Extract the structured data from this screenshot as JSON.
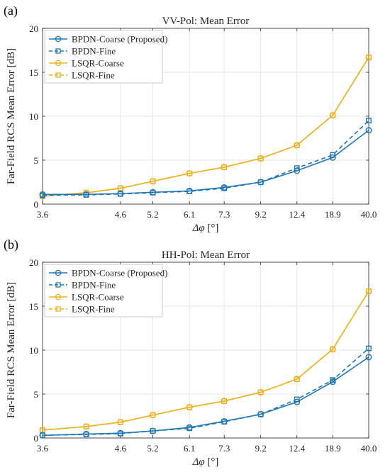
{
  "colors": {
    "bpdn": "#1f77b4",
    "lsqr": "#edb120",
    "grid": "#e6e6e6",
    "axis": "#262626"
  },
  "chart_data": [
    {
      "panel_label": "(a)",
      "type": "line",
      "title": "VV-Pol: Mean Error",
      "xlabel_symbol": "Δφ",
      "xlabel_unit": "[°]",
      "ylabel": "Far-Field RCS Mean Error [dB]",
      "ylim": [
        0,
        20
      ],
      "yticks": [
        0,
        5,
        10,
        15,
        20
      ],
      "xticks": [
        3.6,
        4.6,
        5.2,
        6.1,
        7.3,
        9.2,
        12.4,
        18.9,
        40.0
      ],
      "xtick_labels": [
        "3.6",
        "4.6",
        "5.2",
        "6.1",
        "7.3",
        "9.2",
        "12.4",
        "18.9",
        "40.0"
      ],
      "x_scale": "reciprocal",
      "grid": true,
      "legend_position": "top-left",
      "x": [
        3.6,
        4.1,
        4.6,
        5.2,
        6.1,
        7.3,
        9.2,
        12.4,
        18.9,
        40.0
      ],
      "series": [
        {
          "name": "BPDN-Coarse (Proposed)",
          "color": "#1f77b4",
          "dash": "solid",
          "marker": "circle",
          "values": [
            1.1,
            1.1,
            1.2,
            1.35,
            1.5,
            1.9,
            2.5,
            3.8,
            5.3,
            8.4
          ]
        },
        {
          "name": "BPDN-Fine",
          "color": "#1f77b4",
          "dash": "dashed",
          "marker": "square",
          "values": [
            1.0,
            1.05,
            1.15,
            1.3,
            1.45,
            1.8,
            2.5,
            4.1,
            5.6,
            9.5
          ]
        },
        {
          "name": "LSQR-Coarse",
          "color": "#edb120",
          "dash": "solid",
          "marker": "circle",
          "values": [
            0.9,
            1.3,
            1.8,
            2.6,
            3.5,
            4.2,
            5.2,
            6.7,
            10.1,
            16.7
          ]
        },
        {
          "name": "LSQR-Fine",
          "color": "#edb120",
          "dash": "dashed",
          "marker": "square",
          "values": [
            0.9,
            1.3,
            1.8,
            2.6,
            3.5,
            4.2,
            5.2,
            6.7,
            10.1,
            16.7
          ]
        }
      ]
    },
    {
      "panel_label": "(b)",
      "type": "line",
      "title": "HH-Pol: Mean Error",
      "xlabel_symbol": "Δφ",
      "xlabel_unit": "[°]",
      "ylabel": "Far-Field RCS Mean Error [dB]",
      "ylim": [
        0,
        20
      ],
      "yticks": [
        0,
        5,
        10,
        15,
        20
      ],
      "xticks": [
        3.6,
        4.6,
        5.2,
        6.1,
        7.3,
        9.2,
        12.4,
        18.9,
        40.0
      ],
      "xtick_labels": [
        "3.6",
        "4.6",
        "5.2",
        "6.1",
        "7.3",
        "9.2",
        "12.4",
        "18.9",
        "40.0"
      ],
      "x_scale": "reciprocal",
      "grid": true,
      "legend_position": "top-left",
      "x": [
        3.6,
        4.1,
        4.6,
        5.2,
        6.1,
        7.3,
        9.2,
        12.4,
        18.9,
        40.0
      ],
      "series": [
        {
          "name": "BPDN-Coarse (Proposed)",
          "color": "#1f77b4",
          "dash": "solid",
          "marker": "circle",
          "values": [
            0.3,
            0.45,
            0.55,
            0.8,
            1.2,
            1.9,
            2.7,
            4.1,
            6.4,
            9.2
          ]
        },
        {
          "name": "BPDN-Fine",
          "color": "#1f77b4",
          "dash": "dashed",
          "marker": "square",
          "values": [
            0.3,
            0.4,
            0.5,
            0.8,
            1.1,
            1.85,
            2.7,
            4.4,
            6.6,
            10.2
          ]
        },
        {
          "name": "LSQR-Coarse",
          "color": "#edb120",
          "dash": "solid",
          "marker": "circle",
          "values": [
            0.9,
            1.3,
            1.8,
            2.6,
            3.5,
            4.2,
            5.2,
            6.7,
            10.1,
            16.7
          ]
        },
        {
          "name": "LSQR-Fine",
          "color": "#edb120",
          "dash": "dashed",
          "marker": "square",
          "values": [
            0.9,
            1.3,
            1.8,
            2.6,
            3.5,
            4.2,
            5.2,
            6.7,
            10.1,
            16.7
          ]
        }
      ]
    }
  ]
}
